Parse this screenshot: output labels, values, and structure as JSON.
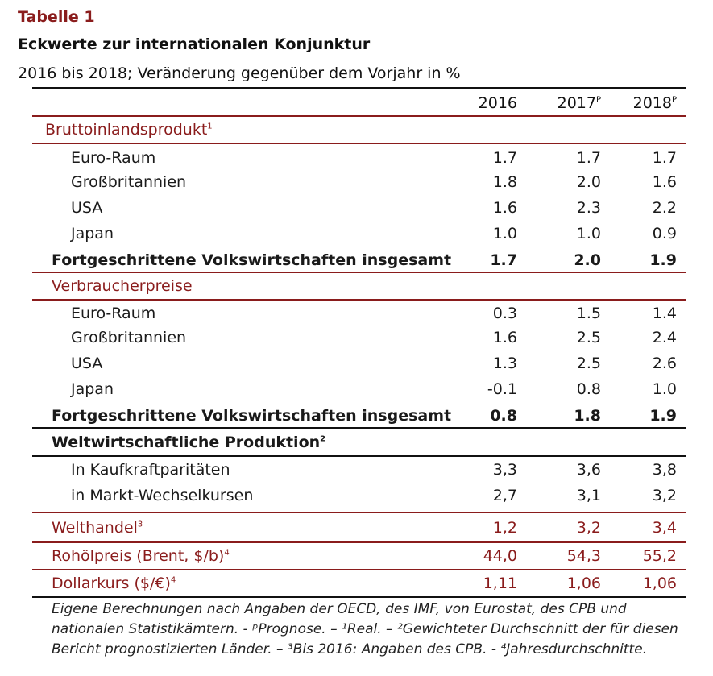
{
  "table_label": "Tabelle 1",
  "title": "Eckwerte zur internationalen Konjunktur",
  "subtitle": "2016 bis 2018; Veränderung gegenüber dem Vorjahr in %",
  "columns": [
    "2016",
    "2017",
    "2018"
  ],
  "column_sup": [
    "",
    "P",
    "P"
  ],
  "sections": {
    "bip": {
      "label": "Bruttoinlandsprodukt",
      "sup": "1",
      "rows": [
        {
          "label": "Euro-Raum",
          "v": [
            "1.7",
            "1.7",
            "1.7"
          ]
        },
        {
          "label": "Großbritannien",
          "v": [
            "1.8",
            "2.0",
            "1.6"
          ]
        },
        {
          "label": "USA",
          "v": [
            "1.6",
            "2.3",
            "2.2"
          ]
        },
        {
          "label": "Japan",
          "v": [
            "1.0",
            "1.0",
            "0.9"
          ]
        }
      ],
      "total": {
        "label": "Fortgeschrittene Volkswirtschaften insgesamt",
        "v": [
          "1.7",
          "2.0",
          "1.9"
        ]
      }
    },
    "vp": {
      "label": "Verbraucherpreise",
      "rows": [
        {
          "label": "Euro-Raum",
          "v": [
            "0.3",
            "1.5",
            "1.4"
          ]
        },
        {
          "label": "Großbritannien",
          "v": [
            "1.6",
            "2.5",
            "2.4"
          ]
        },
        {
          "label": "USA",
          "v": [
            "1.3",
            "2.5",
            "2.6"
          ]
        },
        {
          "label": "Japan",
          "v": [
            "-0.1",
            "0.8",
            "1.0"
          ]
        }
      ],
      "total": {
        "label": "Fortgeschrittene Volkswirtschaften insgesamt",
        "v": [
          "0.8",
          "1.8",
          "1.9"
        ]
      }
    },
    "wp": {
      "label": "Weltwirtschaftliche Produktion",
      "sup": "2",
      "rows": [
        {
          "label": "In Kaufkraftparitäten",
          "v": [
            "3,3",
            "3,6",
            "3,8"
          ]
        },
        {
          "label": "in Markt-Wechselkursen",
          "v": [
            "2,7",
            "3,1",
            "3,2"
          ]
        }
      ]
    },
    "welthandel": {
      "label": "Welthandel",
      "sup": "3",
      "v": [
        "1,2",
        "3,2",
        "3,4"
      ]
    },
    "rohoel": {
      "label": "Rohölpreis (Brent, $/b)",
      "sup": "4",
      "v": [
        "44,0",
        "54,3",
        "55,2"
      ]
    },
    "dollar": {
      "label": "Dollarkurs ($/€)",
      "sup": "4",
      "v": [
        "1,11",
        "1,06",
        "1,06"
      ]
    }
  },
  "footnote": "Eigene Berechnungen nach Angaben der OECD, des IMF, von Eurostat, des CPB und nationalen Statistikämtern. - ᵖPrognose. – ¹Real. – ²Gewichteter Durchschnitt der für diesen Bericht prognostizierten Länder. – ³Bis 2016: Angaben des CPB. - ⁴Jahresdurchschnitte."
}
